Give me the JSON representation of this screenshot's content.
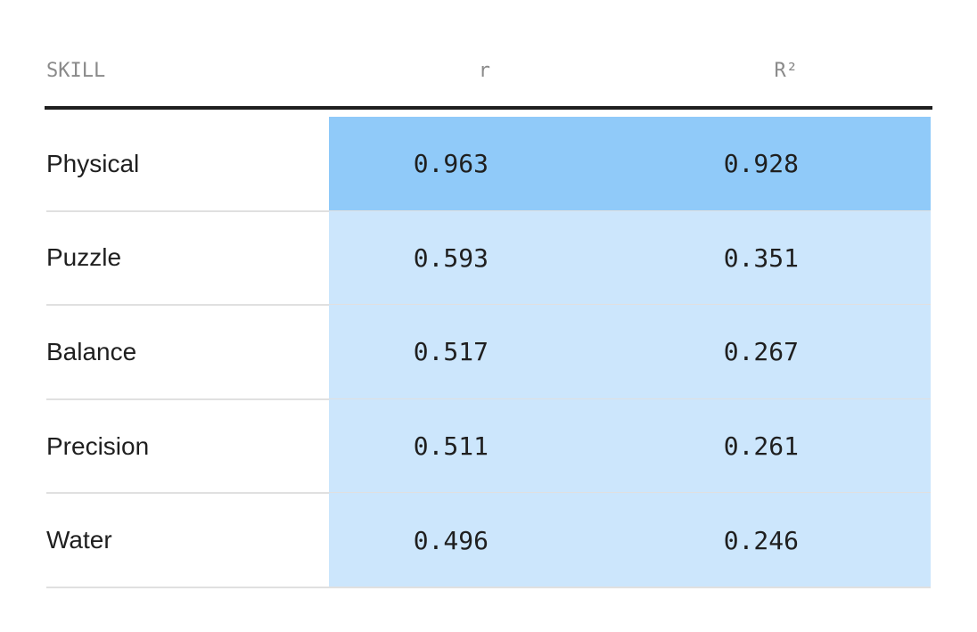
{
  "table": {
    "header": [
      "SKILL",
      "r",
      "R²"
    ],
    "rows": [
      [
        "Physical",
        "0.963",
        "0.928"
      ],
      [
        "Puzzle",
        "0.593",
        "0.351"
      ],
      [
        "Balance",
        "0.517",
        "0.267"
      ],
      [
        "Precision",
        "0.511",
        "0.261"
      ],
      [
        "Water",
        "0.496",
        "0.246"
      ]
    ]
  }
}
